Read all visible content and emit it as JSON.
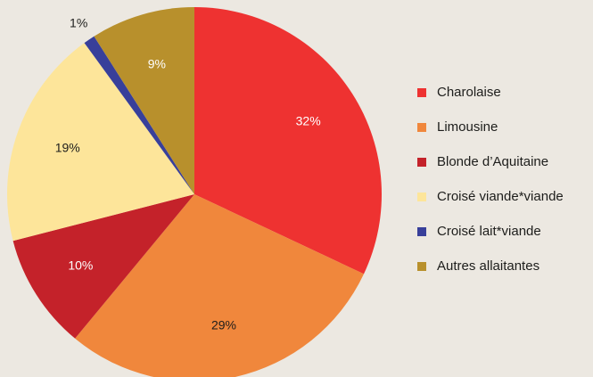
{
  "chart_data": {
    "type": "pie",
    "categories": [
      "Charolaise",
      "Limousine",
      "Blonde d’Aquitaine",
      "Croisé viande*viande",
      "Croisé lait*viande",
      "Autres allaitantes"
    ],
    "values": [
      32,
      29,
      10,
      19,
      1,
      9
    ],
    "value_labels": [
      "32%",
      "29%",
      "10%",
      "19%",
      "1%",
      "9%"
    ],
    "colors": [
      "#ee3231",
      "#f0873c",
      "#c4222a",
      "#fde59a",
      "#383f9a",
      "#b8902c"
    ],
    "legend": "right"
  }
}
